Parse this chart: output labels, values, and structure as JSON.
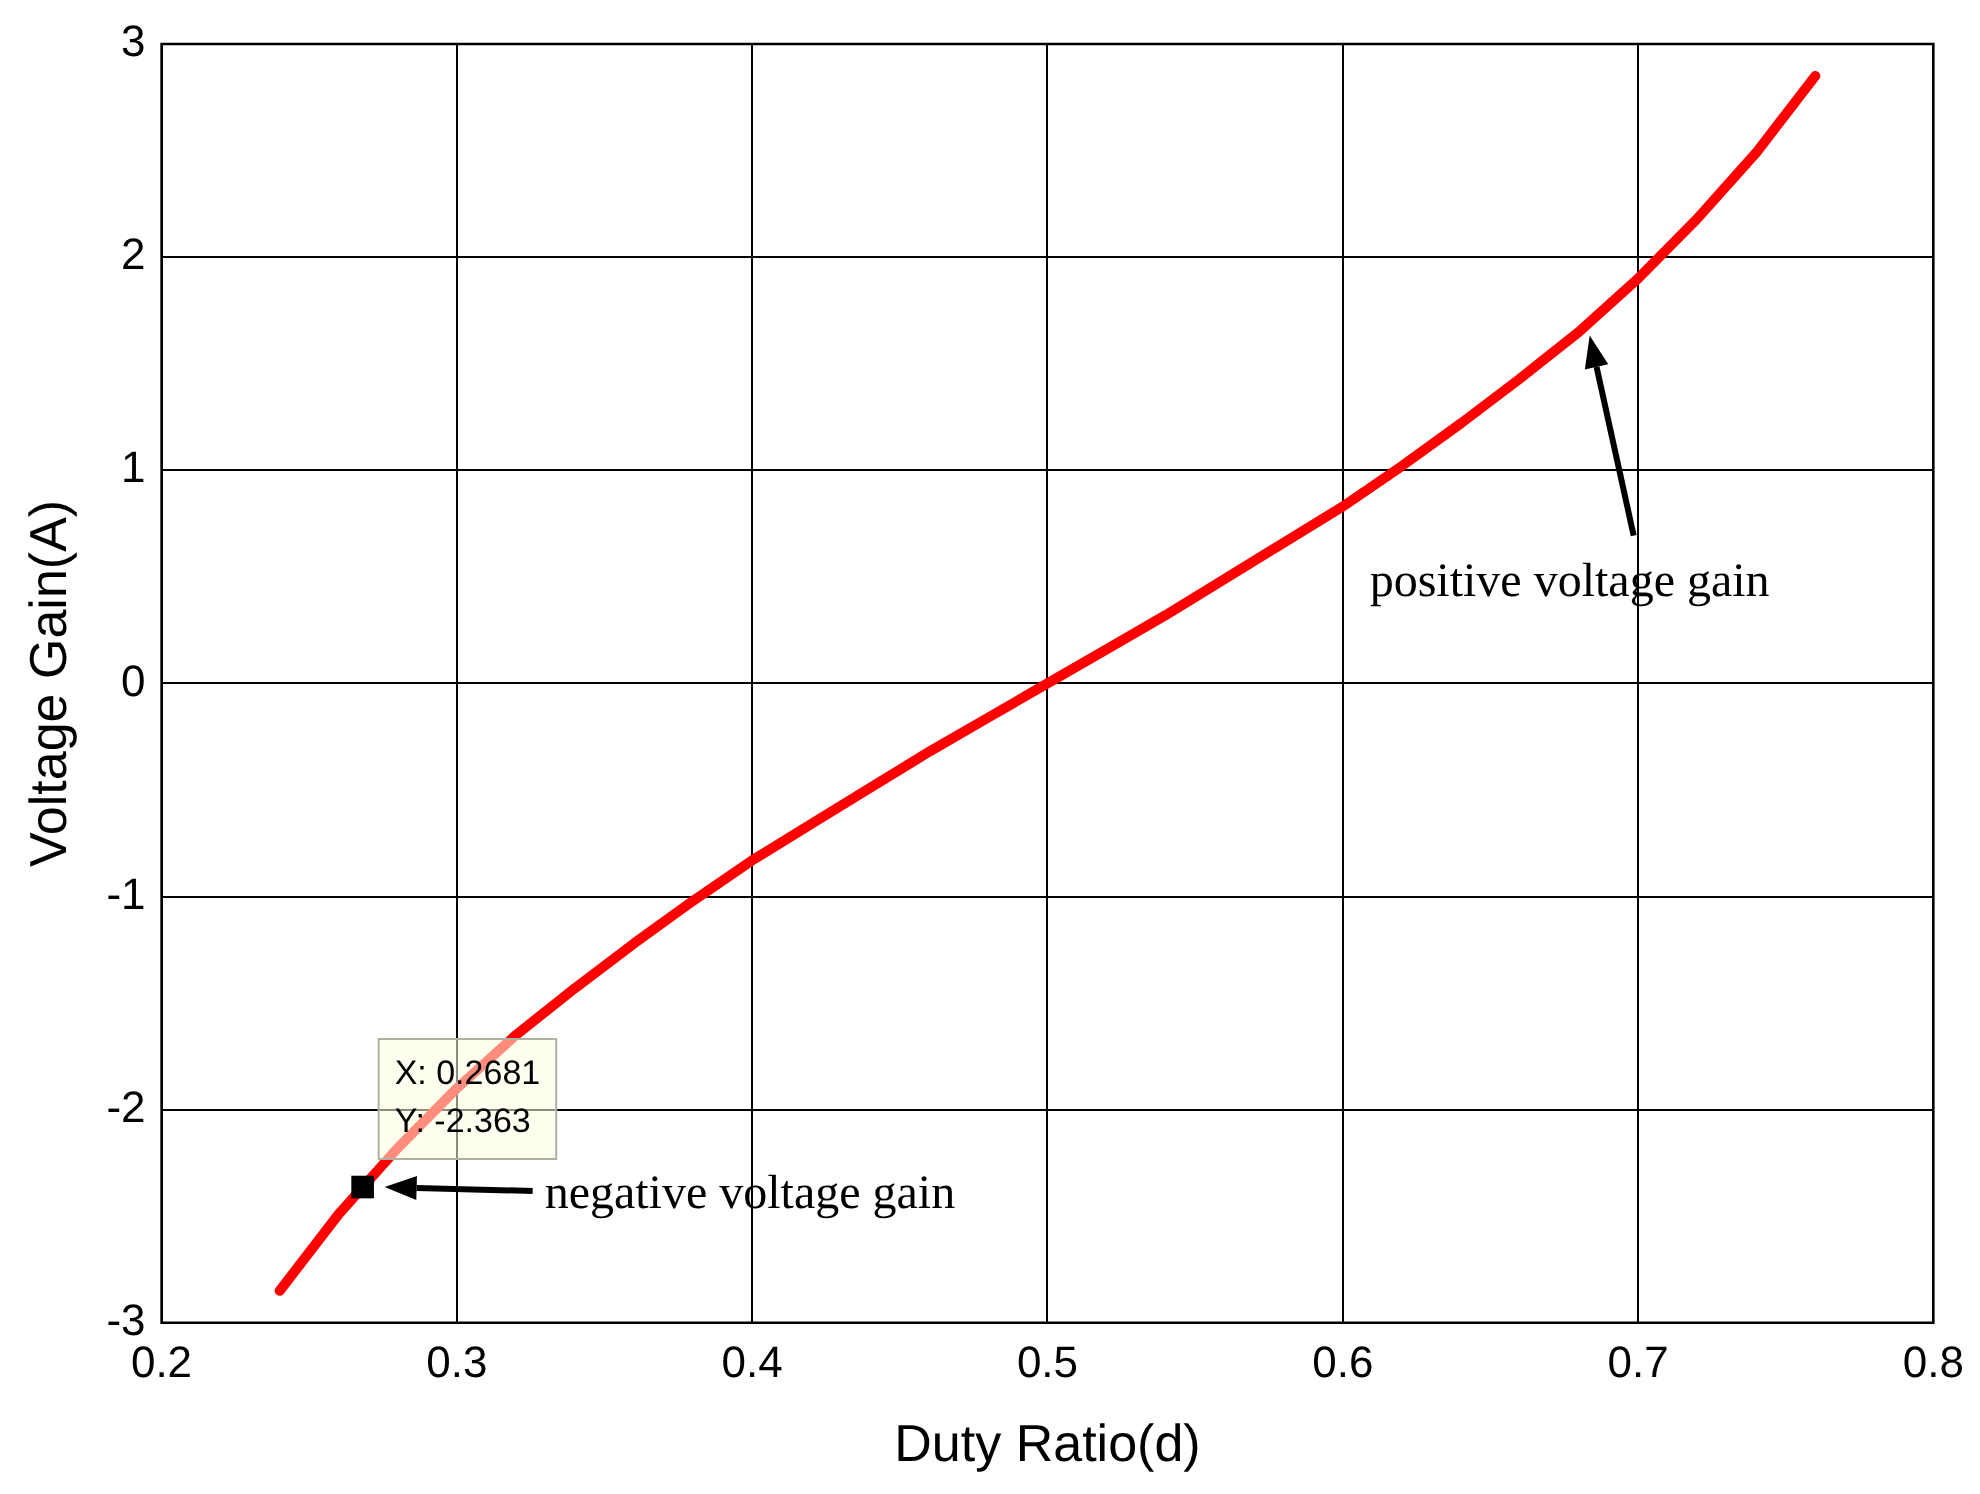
{
  "chart_data": {
    "type": "line",
    "xlabel": "Duty Ratio(d)",
    "ylabel": "Voltage Gain(A)",
    "xlim": [
      0.2,
      0.8
    ],
    "xticks": [
      0.2,
      0.3,
      0.4,
      0.5,
      0.6,
      0.7,
      0.8
    ],
    "ylim": [
      -3,
      3
    ],
    "yticks": [
      -3,
      -2,
      -1,
      0,
      1,
      2,
      3
    ],
    "grid": true,
    "legend": false,
    "marker": "none",
    "line_style": "solid",
    "series": [
      {
        "color": "#ff0000",
        "x": [
          0.24,
          0.26,
          0.28,
          0.3,
          0.32,
          0.34,
          0.36,
          0.38,
          0.4,
          0.42,
          0.44,
          0.46,
          0.48,
          0.5,
          0.52,
          0.54,
          0.56,
          0.58,
          0.6,
          0.62,
          0.64,
          0.66,
          0.68,
          0.7,
          0.72,
          0.74,
          0.76
        ],
        "values": [
          -2.85,
          -2.49,
          -2.18,
          -1.9,
          -1.65,
          -1.43,
          -1.22,
          -1.02,
          -0.83,
          -0.66,
          -0.49,
          -0.32,
          -0.16,
          0,
          0.16,
          0.32,
          0.49,
          0.66,
          0.83,
          1.02,
          1.22,
          1.43,
          1.65,
          1.9,
          2.18,
          2.49,
          2.85
        ]
      },
      {
        "type": "scatter",
        "marker": "square",
        "color": "#000000",
        "x": [
          0.2681
        ],
        "values": [
          -2.363
        ]
      }
    ],
    "annotations": [
      "X: 0.2681",
      "Y: -2.363",
      "positive voltage gain",
      "negative voltage gain"
    ]
  }
}
